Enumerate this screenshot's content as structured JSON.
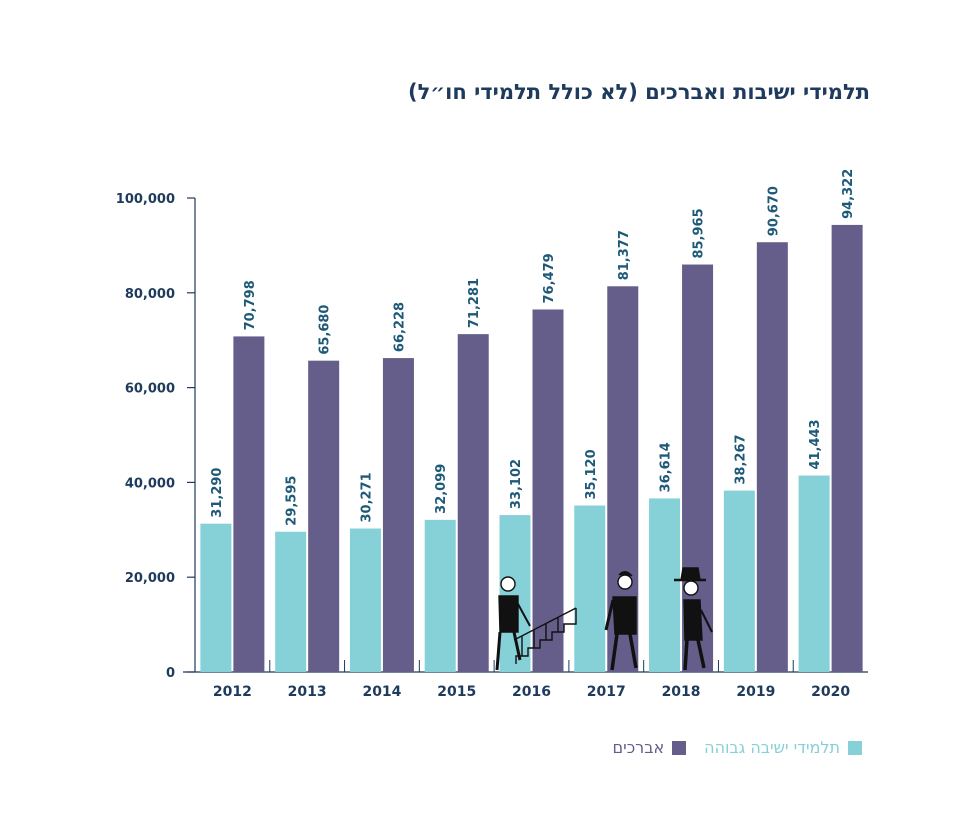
{
  "colors": {
    "series1": "#86d0d7",
    "series2": "#655d8a",
    "axis": "#1e3a5c",
    "label1": "#86d0d7",
    "label2": "#655d8a"
  },
  "chart_data": {
    "type": "bar",
    "title": "תלמידי ישיבות ואברכים (לא כולל תלמידי חו״ל)",
    "categories": [
      "2012",
      "2013",
      "2014",
      "2015",
      "2016",
      "2017",
      "2018",
      "2019",
      "2020"
    ],
    "series": [
      {
        "name": "תלמידי ישיבה גבוהה",
        "values": [
          31290,
          29595,
          30271,
          32099,
          33102,
          35120,
          36614,
          38267,
          41443
        ]
      },
      {
        "name": "אברכים",
        "values": [
          70798,
          65680,
          66228,
          71281,
          76479,
          81377,
          85965,
          90670,
          94322
        ]
      }
    ],
    "ylim": [
      0,
      100000
    ],
    "yticks": [
      0,
      20000,
      40000,
      60000,
      80000,
      100000
    ],
    "ytick_labels": [
      "0",
      "20,000",
      "40,000",
      "60,000",
      "80,000",
      "100,000"
    ],
    "value_labels": {
      "series1": [
        "31,290",
        "29,595",
        "30,271",
        "32,099",
        "33,102",
        "35,120",
        "36,614",
        "38,267",
        "41,443"
      ],
      "series2": [
        "70,798",
        "65,680",
        "66,228",
        "71,281",
        "76,479",
        "81,377",
        "85,965",
        "90,670",
        "94,322"
      ]
    },
    "legend_position": "bottom-right",
    "grid": false
  }
}
